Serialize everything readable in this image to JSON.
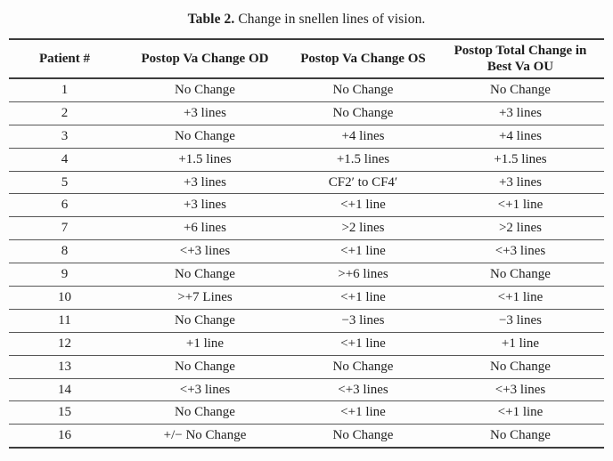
{
  "caption": {
    "label": "Table 2.",
    "text": "Change in snellen lines of vision."
  },
  "table": {
    "columns": [
      "Patient #",
      "Postop Va Change OD",
      "Postop Va Change OS",
      "Postop Total Change in Best Va OU"
    ],
    "rows": [
      [
        "1",
        "No Change",
        "No Change",
        "No Change"
      ],
      [
        "2",
        "+3 lines",
        "No Change",
        "+3 lines"
      ],
      [
        "3",
        "No Change",
        "+4 lines",
        "+4 lines"
      ],
      [
        "4",
        "+1.5 lines",
        "+1.5 lines",
        "+1.5 lines"
      ],
      [
        "5",
        "+3 lines",
        "CF2′ to CF4′",
        "+3 lines"
      ],
      [
        "6",
        "+3 lines",
        "<+1 line",
        "<+1 line"
      ],
      [
        "7",
        "+6 lines",
        ">2 lines",
        ">2 lines"
      ],
      [
        "8",
        "<+3 lines",
        "<+1 line",
        "<+3 lines"
      ],
      [
        "9",
        "No Change",
        ">+6 lines",
        "No Change"
      ],
      [
        "10",
        ">+7 Lines",
        "<+1 line",
        "<+1 line"
      ],
      [
        "11",
        "No Change",
        "−3 lines",
        "−3 lines"
      ],
      [
        "12",
        "+1 line",
        "<+1 line",
        "+1 line"
      ],
      [
        "13",
        "No Change",
        "No Change",
        "No Change"
      ],
      [
        "14",
        "<+3 lines",
        "<+3 lines",
        "<+3 lines"
      ],
      [
        "15",
        "No Change",
        "<+1 line",
        "<+1 line"
      ],
      [
        "16",
        "+/− No Change",
        "No Change",
        "No Change"
      ]
    ]
  }
}
